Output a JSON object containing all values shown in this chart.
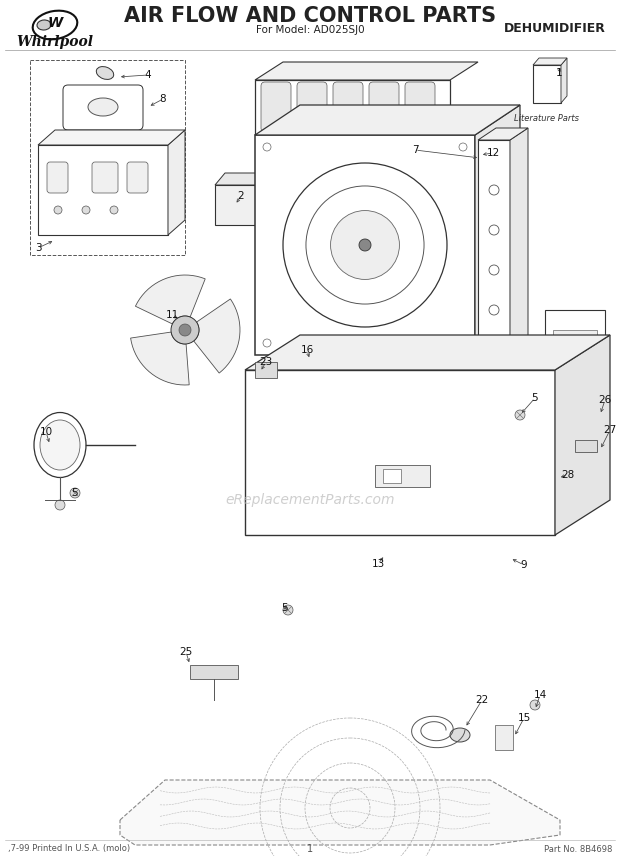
{
  "title_main": "AIR FLOW AND CONTROL PARTS",
  "title_sub": "For Model: AD025SJ0",
  "title_right": "DEHUMIDIFIER",
  "brand": "Whirlpool",
  "footer_left": ",7-99 Printed In U.S.A. (molo)",
  "footer_center": "1",
  "footer_right": "Part No. 8B4698",
  "watermark": "eReplacementParts.com",
  "lit_parts_label": "Literature Parts",
  "bg_color": "#ffffff",
  "text_color": "#222222",
  "line_color": "#333333",
  "gray_color": "#888888",
  "light_gray": "#bbbbbb",
  "figsize": [
    6.2,
    8.56
  ],
  "dpi": 100
}
